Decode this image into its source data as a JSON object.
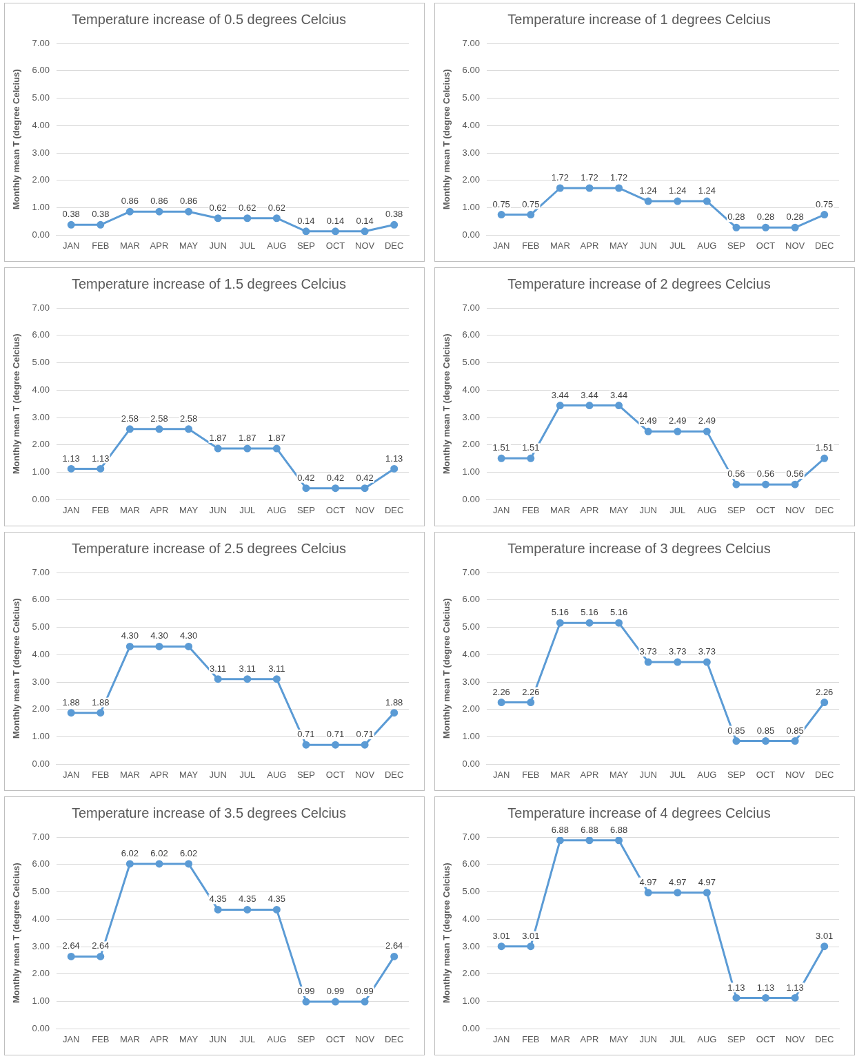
{
  "chart_data": [
    {
      "type": "line",
      "title": "Temperature increase of 0.5 degrees Celcius",
      "ylabel": "Monthly mean T (degree Celcius)",
      "categories": [
        "JAN",
        "FEB",
        "MAR",
        "APR",
        "MAY",
        "JUN",
        "JUL",
        "AUG",
        "SEP",
        "OCT",
        "NOV",
        "DEC"
      ],
      "values": [
        0.38,
        0.38,
        0.86,
        0.86,
        0.86,
        0.62,
        0.62,
        0.62,
        0.14,
        0.14,
        0.14,
        0.38
      ],
      "value_labels": [
        "0.38",
        "0.38",
        "0.86",
        "0.86",
        "0.86",
        "0.62",
        "0.62",
        "0.62",
        "0.14",
        "0.14",
        "0.14",
        "0.38"
      ],
      "color": "#5b9bd5",
      "ylim": [
        0,
        7
      ],
      "yticks": [
        {
          "value": 0,
          "label": "0.00"
        },
        {
          "value": 1,
          "label": "1.00"
        },
        {
          "value": 2,
          "label": "2.00"
        },
        {
          "value": 3,
          "label": "3.00"
        },
        {
          "value": 4,
          "label": "4.00"
        },
        {
          "value": 5,
          "label": "5.00"
        },
        {
          "value": 6,
          "label": "6.00"
        },
        {
          "value": 7,
          "label": "7.00"
        }
      ],
      "grid": "y",
      "marker": "circle",
      "legend": false
    },
    {
      "type": "line",
      "title": "Temperature increase of 1 degrees Celcius",
      "ylabel": "Monthly mean T (degree Celcius)",
      "categories": [
        "JAN",
        "FEB",
        "MAR",
        "APR",
        "MAY",
        "JUN",
        "JUL",
        "AUG",
        "SEP",
        "OCT",
        "NOV",
        "DEC"
      ],
      "values": [
        0.75,
        0.75,
        1.72,
        1.72,
        1.72,
        1.24,
        1.24,
        1.24,
        0.28,
        0.28,
        0.28,
        0.75
      ],
      "value_labels": [
        "0.75",
        "0.75",
        "1.72",
        "1.72",
        "1.72",
        "1.24",
        "1.24",
        "1.24",
        "0.28",
        "0.28",
        "0.28",
        "0.75"
      ],
      "color": "#5b9bd5",
      "ylim": [
        0,
        7
      ],
      "yticks": [
        {
          "value": 0,
          "label": "0.00"
        },
        {
          "value": 1,
          "label": "1.00"
        },
        {
          "value": 2,
          "label": "2.00"
        },
        {
          "value": 3,
          "label": "3.00"
        },
        {
          "value": 4,
          "label": "4.00"
        },
        {
          "value": 5,
          "label": "5.00"
        },
        {
          "value": 6,
          "label": "6.00"
        },
        {
          "value": 7,
          "label": "7.00"
        }
      ],
      "grid": "y",
      "marker": "circle",
      "legend": false
    },
    {
      "type": "line",
      "title": "Temperature increase of 1.5 degrees Celcius",
      "ylabel": "Monthly mean T (degree Celcius)",
      "categories": [
        "JAN",
        "FEB",
        "MAR",
        "APR",
        "MAY",
        "JUN",
        "JUL",
        "AUG",
        "SEP",
        "OCT",
        "NOV",
        "DEC"
      ],
      "values": [
        1.13,
        1.13,
        2.58,
        2.58,
        2.58,
        1.87,
        1.87,
        1.87,
        0.42,
        0.42,
        0.42,
        1.13
      ],
      "value_labels": [
        "1.13",
        "1.13",
        "2.58",
        "2.58",
        "2.58",
        "1.87",
        "1.87",
        "1.87",
        "0.42",
        "0.42",
        "0.42",
        "1.13"
      ],
      "color": "#5b9bd5",
      "ylim": [
        0,
        7
      ],
      "yticks": [
        {
          "value": 0,
          "label": "0.00"
        },
        {
          "value": 1,
          "label": "1.00"
        },
        {
          "value": 2,
          "label": "2.00"
        },
        {
          "value": 3,
          "label": "3.00"
        },
        {
          "value": 4,
          "label": "4.00"
        },
        {
          "value": 5,
          "label": "5.00"
        },
        {
          "value": 6,
          "label": "6.00"
        },
        {
          "value": 7,
          "label": "7.00"
        }
      ],
      "grid": "y",
      "marker": "circle",
      "legend": false
    },
    {
      "type": "line",
      "title": "Temperature increase of 2 degrees Celcius",
      "ylabel": "Monthly mean T (degree Celcius)",
      "categories": [
        "JAN",
        "FEB",
        "MAR",
        "APR",
        "MAY",
        "JUN",
        "JUL",
        "AUG",
        "SEP",
        "OCT",
        "NOV",
        "DEC"
      ],
      "values": [
        1.51,
        1.51,
        3.44,
        3.44,
        3.44,
        2.49,
        2.49,
        2.49,
        0.56,
        0.56,
        0.56,
        1.51
      ],
      "value_labels": [
        "1.51",
        "1.51",
        "3.44",
        "3.44",
        "3.44",
        "2.49",
        "2.49",
        "2.49",
        "0.56",
        "0.56",
        "0.56",
        "1.51"
      ],
      "color": "#5b9bd5",
      "ylim": [
        0,
        7
      ],
      "yticks": [
        {
          "value": 0,
          "label": "0.00"
        },
        {
          "value": 1,
          "label": "1.00"
        },
        {
          "value": 2,
          "label": "2.00"
        },
        {
          "value": 3,
          "label": "3.00"
        },
        {
          "value": 4,
          "label": "4.00"
        },
        {
          "value": 5,
          "label": "5.00"
        },
        {
          "value": 6,
          "label": "6.00"
        },
        {
          "value": 7,
          "label": "7.00"
        }
      ],
      "grid": "y",
      "marker": "circle",
      "legend": false
    },
    {
      "type": "line",
      "title": "Temperature increase of 2.5 degrees Celcius",
      "ylabel": "Monthly mean T (degree Celcius)",
      "categories": [
        "JAN",
        "FEB",
        "MAR",
        "APR",
        "MAY",
        "JUN",
        "JUL",
        "AUG",
        "SEP",
        "OCT",
        "NOV",
        "DEC"
      ],
      "values": [
        1.88,
        1.88,
        4.3,
        4.3,
        4.3,
        3.11,
        3.11,
        3.11,
        0.71,
        0.71,
        0.71,
        1.88
      ],
      "value_labels": [
        "1.88",
        "1.88",
        "4.30",
        "4.30",
        "4.30",
        "3.11",
        "3.11",
        "3.11",
        "0.71",
        "0.71",
        "0.71",
        "1.88"
      ],
      "color": "#5b9bd5",
      "ylim": [
        0,
        7
      ],
      "yticks": [
        {
          "value": 0,
          "label": "0.00"
        },
        {
          "value": 1,
          "label": "1.00"
        },
        {
          "value": 2,
          "label": "2.00"
        },
        {
          "value": 3,
          "label": "3.00"
        },
        {
          "value": 4,
          "label": "4.00"
        },
        {
          "value": 5,
          "label": "5.00"
        },
        {
          "value": 6,
          "label": "6.00"
        },
        {
          "value": 7,
          "label": "7.00"
        }
      ],
      "grid": "y",
      "marker": "circle",
      "legend": false
    },
    {
      "type": "line",
      "title": "Temperature increase of 3 degrees Celcius",
      "ylabel": "Monthly mean T (degree Celcius)",
      "categories": [
        "JAN",
        "FEB",
        "MAR",
        "APR",
        "MAY",
        "JUN",
        "JUL",
        "AUG",
        "SEP",
        "OCT",
        "NOV",
        "DEC"
      ],
      "values": [
        2.26,
        2.26,
        5.16,
        5.16,
        5.16,
        3.73,
        3.73,
        3.73,
        0.85,
        0.85,
        0.85,
        2.26
      ],
      "value_labels": [
        "2.26",
        "2.26",
        "5.16",
        "5.16",
        "5.16",
        "3.73",
        "3.73",
        "3.73",
        "0.85",
        "0.85",
        "0.85",
        "2.26"
      ],
      "color": "#5b9bd5",
      "ylim": [
        0,
        7
      ],
      "yticks": [
        {
          "value": 0,
          "label": "0.00"
        },
        {
          "value": 1,
          "label": "1.00"
        },
        {
          "value": 2,
          "label": "2.00"
        },
        {
          "value": 3,
          "label": "3.00"
        },
        {
          "value": 4,
          "label": "4.00"
        },
        {
          "value": 5,
          "label": "5.00"
        },
        {
          "value": 6,
          "label": "6.00"
        },
        {
          "value": 7,
          "label": "7.00"
        }
      ],
      "grid": "y",
      "marker": "circle",
      "legend": false
    },
    {
      "type": "line",
      "title": "Temperature increase of 3.5 degrees Celcius",
      "ylabel": "Monthly mean T (degree Celcius)",
      "categories": [
        "JAN",
        "FEB",
        "MAR",
        "APR",
        "MAY",
        "JUN",
        "JUL",
        "AUG",
        "SEP",
        "OCT",
        "NOV",
        "DEC"
      ],
      "values": [
        2.64,
        2.64,
        6.02,
        6.02,
        6.02,
        4.35,
        4.35,
        4.35,
        0.99,
        0.99,
        0.99,
        2.64
      ],
      "value_labels": [
        "2.64",
        "2.64",
        "6.02",
        "6.02",
        "6.02",
        "4.35",
        "4.35",
        "4.35",
        "0.99",
        "0.99",
        "0.99",
        "2.64"
      ],
      "color": "#5b9bd5",
      "ylim": [
        0,
        7
      ],
      "yticks": [
        {
          "value": 0,
          "label": "0.00"
        },
        {
          "value": 1,
          "label": "1.00"
        },
        {
          "value": 2,
          "label": "2.00"
        },
        {
          "value": 3,
          "label": "3.00"
        },
        {
          "value": 4,
          "label": "4.00"
        },
        {
          "value": 5,
          "label": "5.00"
        },
        {
          "value": 6,
          "label": "6.00"
        },
        {
          "value": 7,
          "label": "7.00"
        }
      ],
      "grid": "y",
      "marker": "circle",
      "legend": false
    },
    {
      "type": "line",
      "title": "Temperature increase of 4 degrees Celcius",
      "ylabel": "Monthly mean T (degree Celcius)",
      "categories": [
        "JAN",
        "FEB",
        "MAR",
        "APR",
        "MAY",
        "JUN",
        "JUL",
        "AUG",
        "SEP",
        "OCT",
        "NOV",
        "DEC"
      ],
      "values": [
        3.01,
        3.01,
        6.88,
        6.88,
        6.88,
        4.97,
        4.97,
        4.97,
        1.13,
        1.13,
        1.13,
        3.01
      ],
      "value_labels": [
        "3.01",
        "3.01",
        "6.88",
        "6.88",
        "6.88",
        "4.97",
        "4.97",
        "4.97",
        "1.13",
        "1.13",
        "1.13",
        "3.01"
      ],
      "color": "#5b9bd5",
      "ylim": [
        0,
        7
      ],
      "yticks": [
        {
          "value": 0,
          "label": "0.00"
        },
        {
          "value": 1,
          "label": "1.00"
        },
        {
          "value": 2,
          "label": "2.00"
        },
        {
          "value": 3,
          "label": "3.00"
        },
        {
          "value": 4,
          "label": "4.00"
        },
        {
          "value": 5,
          "label": "5.00"
        },
        {
          "value": 6,
          "label": "6.00"
        },
        {
          "value": 7,
          "label": "7.00"
        }
      ],
      "grid": "y",
      "marker": "circle",
      "legend": false
    }
  ]
}
